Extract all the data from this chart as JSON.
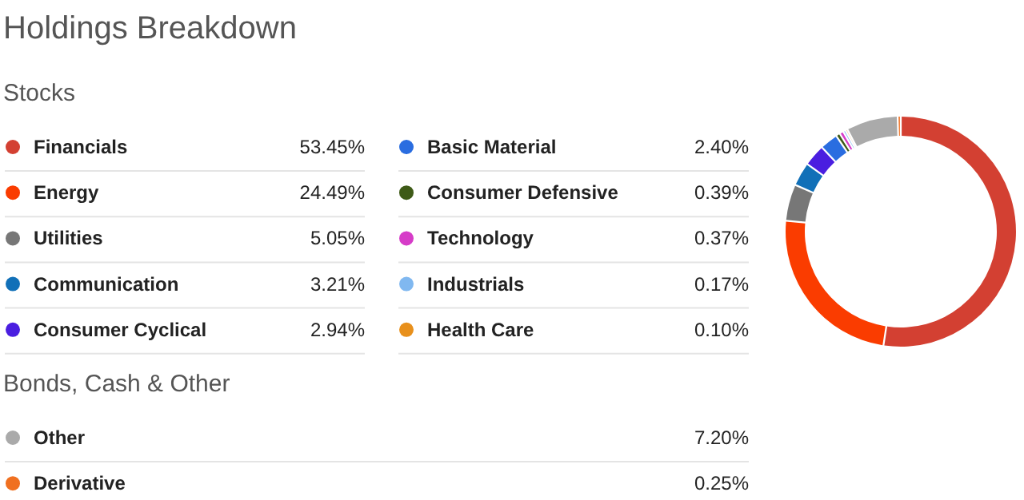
{
  "chart_data": {
    "type": "donut",
    "title": "Holdings Breakdown",
    "legend": "left",
    "annotations": [
      "Stocks",
      "Bonds, Cash & Other"
    ],
    "categories": [
      "Financials",
      "Energy",
      "Utilities",
      "Communication",
      "Consumer Cyclical",
      "Basic Material",
      "Consumer Defensive",
      "Technology",
      "Industrials",
      "Health Care",
      "Other",
      "Derivative"
    ],
    "values": [
      53.45,
      24.49,
      5.05,
      3.21,
      2.94,
      2.4,
      0.39,
      0.37,
      0.17,
      0.1,
      7.2,
      0.25
    ],
    "value_labels": [
      "53.45%",
      "24.49%",
      "5.05%",
      "3.21%",
      "2.94%",
      "2.40%",
      "0.39%",
      "0.37%",
      "0.17%",
      "0.10%",
      "7.20%",
      "0.25%"
    ],
    "colors": [
      "#d34032",
      "#fa3c00",
      "#777777",
      "#1170b8",
      "#4a1ee0",
      "#2a6de0",
      "#3e5a17",
      "#d63cc8",
      "#80b8f0",
      "#e8901c",
      "#aaaaaa",
      "#f07020"
    ]
  }
}
